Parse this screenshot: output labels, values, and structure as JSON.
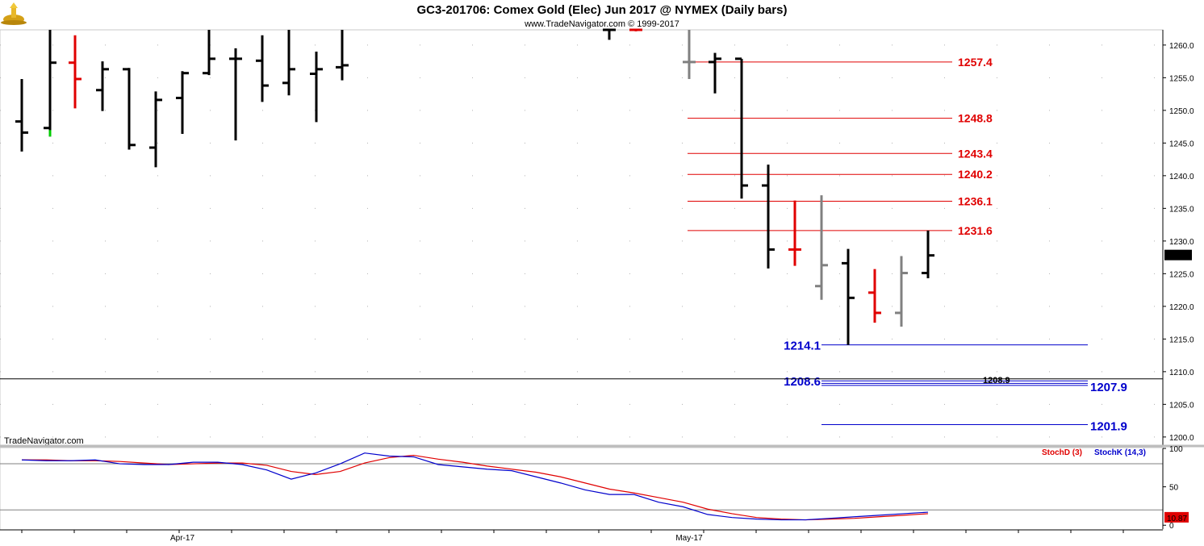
{
  "chart_data": {
    "type": "ohlc",
    "title": "GC3-201706:  Comex Gold (Elec) Jun 2017 @ NYMEX  (Daily bars)",
    "copyright": "www.TradeNavigator.com © 1999-2017",
    "watermark": "TradeNavigator.com",
    "x_labels": [
      "Apr-17",
      "May-17"
    ],
    "y_ticks": [
      1200.0,
      1205.0,
      1210.0,
      1215.0,
      1220.0,
      1225.0,
      1230.0,
      1235.0,
      1240.0,
      1245.0,
      1250.0,
      1255.0,
      1260.0
    ],
    "ylim": [
      1198.5,
      1262.5
    ],
    "last_price": "1227.8",
    "bars": [
      {
        "h": 1254.8,
        "l": 1243.7,
        "o": 1248.3,
        "c": 1246.6,
        "color": "#000000"
      },
      {
        "h": 1263.5,
        "l": 1246.0,
        "o": 1247.3,
        "c": 1257.3,
        "color": "#000000",
        "low_mark": "#00cc00"
      },
      {
        "h": 1261.5,
        "l": 1250.3,
        "o": 1257.3,
        "c": 1254.8,
        "color": "#e00000"
      },
      {
        "h": 1257.5,
        "l": 1249.9,
        "o": 1253.1,
        "c": 1256.3,
        "color": "#000000"
      },
      {
        "h": 1256.5,
        "l": 1244.0,
        "o": 1256.3,
        "c": 1244.7,
        "color": "#000000"
      },
      {
        "h": 1252.9,
        "l": 1241.3,
        "o": 1244.3,
        "c": 1251.6,
        "color": "#000000"
      },
      {
        "h": 1256.0,
        "l": 1246.4,
        "o": 1251.9,
        "c": 1255.7,
        "color": "#000000"
      },
      {
        "h": 1263.5,
        "l": 1255.4,
        "o": 1255.7,
        "c": 1257.9,
        "color": "#000000"
      },
      {
        "h": 1259.5,
        "l": 1245.4,
        "o": 1257.9,
        "c": 1257.9,
        "color": "#000000"
      },
      {
        "h": 1261.5,
        "l": 1251.3,
        "o": 1257.6,
        "c": 1253.8,
        "color": "#000000"
      },
      {
        "h": 1263.5,
        "l": 1252.3,
        "o": 1254.2,
        "c": 1256.3,
        "color": "#000000"
      },
      {
        "h": 1259.0,
        "l": 1248.2,
        "o": 1255.6,
        "c": 1256.3,
        "color": "#000000"
      },
      {
        "h": 1263.5,
        "l": 1254.6,
        "o": 1256.6,
        "c": 1256.9,
        "color": "#000000"
      },
      {
        "h": 1263.5,
        "l": 1260.8,
        "o": 1262.8,
        "c": 1262.8,
        "color": "#000000"
      },
      {
        "h": 1262.7,
        "l": 1262.1,
        "o": 1262.7,
        "c": 1262.7,
        "color": "#e00000"
      },
      {
        "h": 1263.5,
        "l": 1254.8,
        "o": 1257.4,
        "c": 1257.4,
        "color": "#808080"
      },
      {
        "h": 1258.8,
        "l": 1252.6,
        "o": 1257.4,
        "c": 1257.9,
        "color": "#000000"
      },
      {
        "h": 1257.9,
        "l": 1236.5,
        "o": 1257.9,
        "c": 1238.5,
        "color": "#000000"
      },
      {
        "h": 1241.7,
        "l": 1225.8,
        "o": 1238.5,
        "c": 1228.7,
        "color": "#000000"
      },
      {
        "h": 1236.2,
        "l": 1226.2,
        "o": 1228.7,
        "c": 1228.7,
        "color": "#e00000"
      },
      {
        "h": 1237.0,
        "l": 1221.0,
        "o": 1223.1,
        "c": 1226.3,
        "color": "#808080"
      },
      {
        "h": 1228.8,
        "l": 1214.1,
        "o": 1226.6,
        "c": 1221.3,
        "color": "#000000"
      },
      {
        "h": 1225.7,
        "l": 1217.5,
        "o": 1222.1,
        "c": 1219.0,
        "color": "#e00000"
      },
      {
        "h": 1227.7,
        "l": 1216.9,
        "o": 1219.0,
        "c": 1225.1,
        "color": "#808080"
      },
      {
        "h": 1231.6,
        "l": 1224.3,
        "o": 1225.1,
        "c": 1227.8,
        "color": "#000000"
      }
    ],
    "levels": [
      {
        "value": "1257.4",
        "color": "#e00000"
      },
      {
        "value": "1248.8",
        "color": "#e00000"
      },
      {
        "value": "1243.4",
        "color": "#e00000"
      },
      {
        "value": "1240.2",
        "color": "#e00000"
      },
      {
        "value": "1236.1",
        "color": "#e00000"
      },
      {
        "value": "1231.6",
        "color": "#e00000"
      }
    ],
    "support": [
      {
        "value": "1214.1",
        "label_left": "1214.1",
        "label_right": ""
      },
      {
        "value": "1208.6",
        "label_left": "1208.6",
        "label_right": ""
      },
      {
        "value": "1208.2",
        "label_left": "",
        "label_right": ""
      },
      {
        "value": "1207.9",
        "label_left": "",
        "label_right": "1207.9"
      },
      {
        "value": "1201.9",
        "label_left": "",
        "label_right": "1201.9"
      }
    ],
    "horizontal_line": {
      "value": 1208.9,
      "label": "1208.9"
    },
    "stoch": {
      "d_label": "StochD (3)",
      "k_label": "StochK (14,3)",
      "last_value": "10.87",
      "ylim": [
        -5,
        100
      ],
      "y_ticks": [
        0,
        50,
        100
      ],
      "ref_lines": [
        80,
        20
      ],
      "k_values": [
        85,
        84,
        84,
        85,
        80,
        79,
        79,
        82,
        82,
        79,
        72,
        60,
        68,
        80,
        94,
        90,
        89,
        79,
        76,
        73,
        71,
        63,
        55,
        46,
        40,
        40,
        30,
        24,
        14,
        10,
        8,
        7,
        7,
        9,
        11,
        13,
        15,
        17
      ],
      "d_values": [
        85,
        85,
        84,
        84,
        83,
        81,
        79,
        80,
        81,
        81,
        78,
        70,
        66,
        70,
        81,
        88,
        91,
        86,
        82,
        77,
        73,
        69,
        63,
        55,
        47,
        42,
        36,
        30,
        21,
        15,
        10,
        8,
        7,
        8,
        9,
        11,
        13,
        15
      ]
    }
  }
}
